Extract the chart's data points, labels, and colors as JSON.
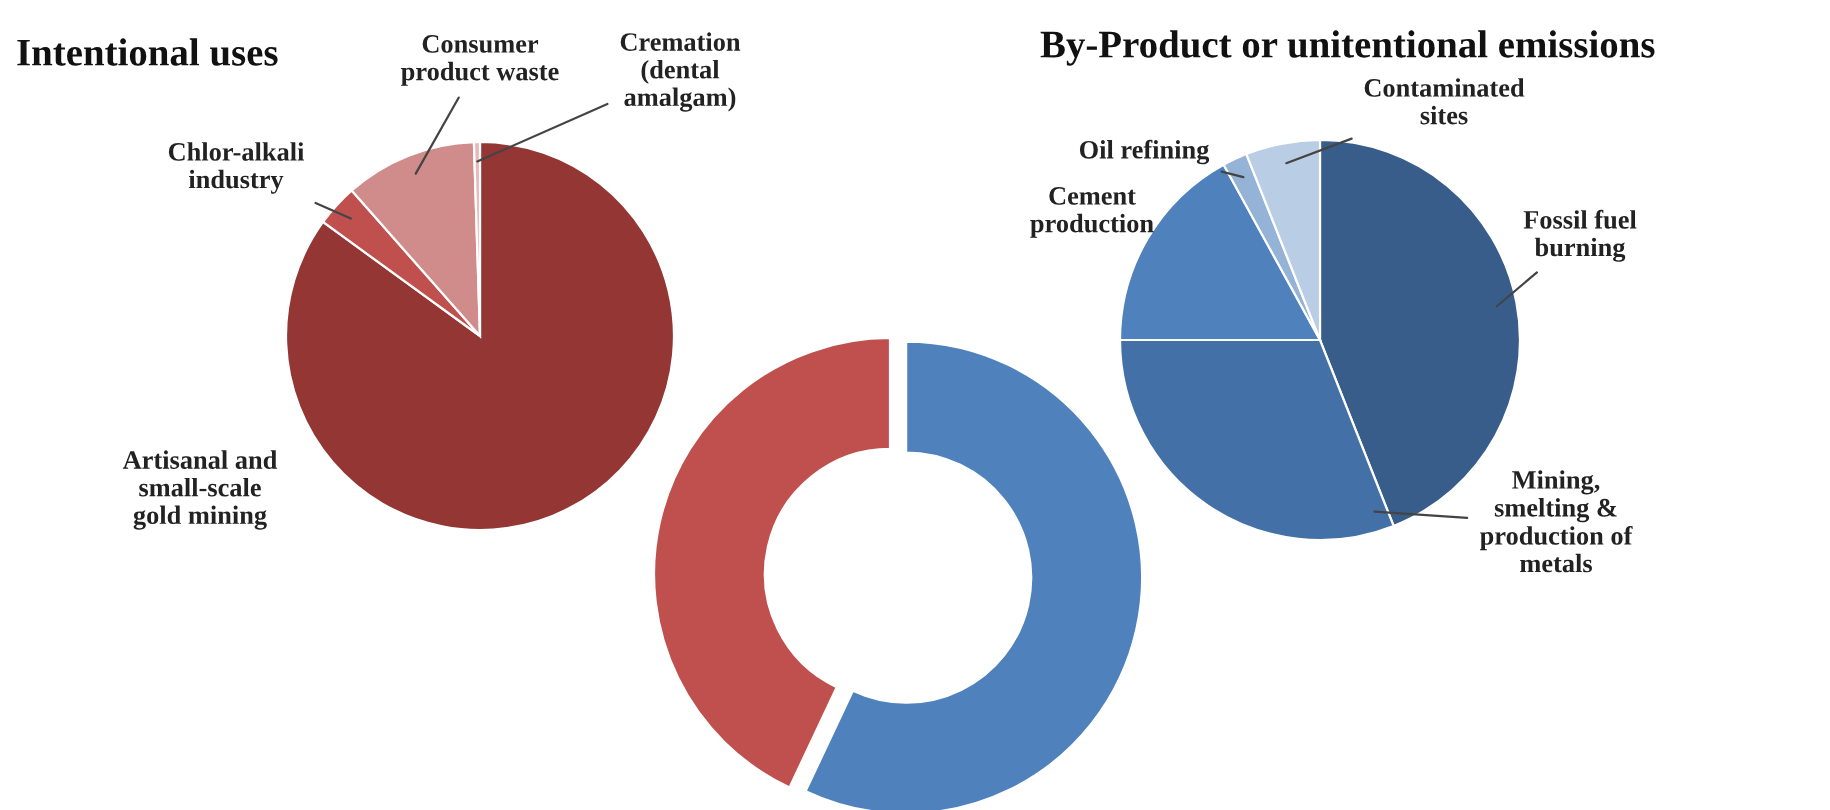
{
  "chart_data": [
    {
      "type": "pie",
      "title": "Intentional uses",
      "categories": [
        "Artisanal and\nsmall-scale\ngold mining",
        "Chlor-alkali\nindustry",
        "Consumer\nproduct waste",
        "Cremation\n(dental\namalgam)"
      ],
      "values": [
        85,
        3.5,
        11,
        0.5
      ],
      "colors": [
        "#943634",
        "#c0504d",
        "#d08c8a",
        "#e6b9b8"
      ]
    },
    {
      "type": "donut",
      "categories": [
        null,
        null
      ],
      "values": [
        57,
        43
      ],
      "colors": [
        "#4f81bd",
        "#c0504d"
      ]
    },
    {
      "type": "pie",
      "title": "By-Product or unitentional emissions",
      "categories": [
        "Fossil fuel\nburning",
        "Mining,\nsmelting &\nproduction of\nmetals",
        "Cement\nproduction",
        "Oil refining",
        "Contaminated\nsites"
      ],
      "values": [
        44,
        31,
        17,
        2,
        6
      ],
      "colors": [
        "#385d8a",
        "#4470a8",
        "#4f81bd",
        "#95b3d7",
        "#b9cde5"
      ]
    }
  ]
}
